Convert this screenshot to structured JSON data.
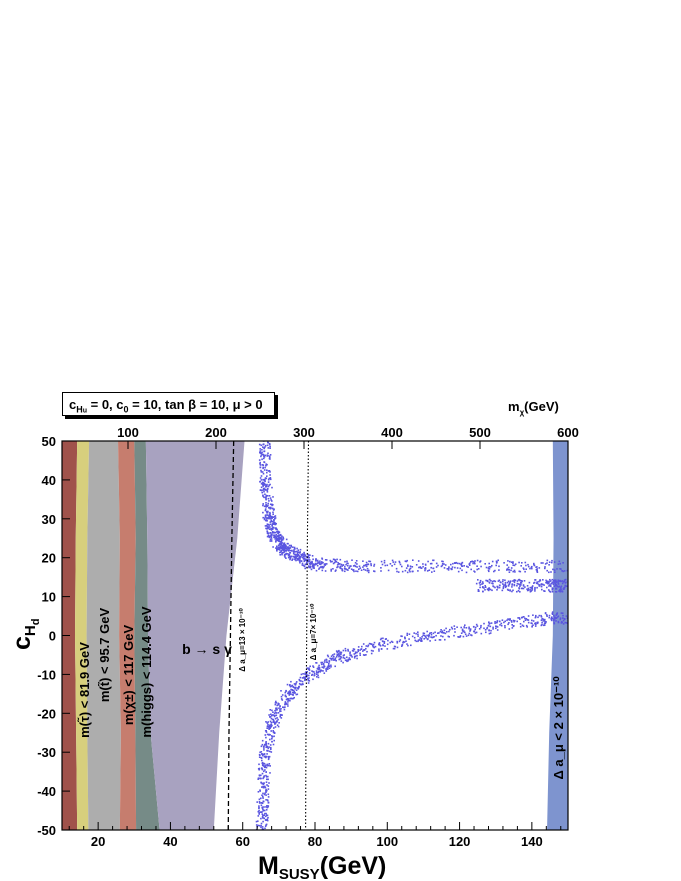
{
  "chart_data": {
    "type": "scatter",
    "title": "",
    "legend_text": {
      "prefix": "c",
      "sub": "H",
      "subsub": "u",
      "rest": " = 0, c",
      "sub2": "0",
      "rest2": " = 10, tan β = 10, μ > 0"
    },
    "xlabel": "M",
    "xlabel_sub": "SUSY",
    "xlabel_unit": "(GeV)",
    "ylabel": "c",
    "ylabel_sub": "H",
    "ylabel_subsub": "d",
    "top_axis_label": "m",
    "top_axis_label_sub": "χ",
    "top_axis_label_unit": "(GeV)",
    "xlim": [
      10,
      150
    ],
    "ylim": [
      -50,
      50
    ],
    "x_ticks": [
      "20",
      "40",
      "60",
      "80",
      "100",
      "120",
      "140"
    ],
    "y_ticks": [
      "-50",
      "-40",
      "-30",
      "-20",
      "-10",
      "0",
      "10",
      "20",
      "30",
      "40",
      "50"
    ],
    "top_ticks": [
      "100",
      "200",
      "300",
      "400",
      "500",
      "600"
    ],
    "regions": [
      {
        "name": "m(τ̃) < 81.9 GeV",
        "color": "#a0524b",
        "x_right": [
          12,
          12
        ]
      },
      {
        "name": "m(τ̃) < 81.9 GeV",
        "color": "#d7cf7d"
      },
      {
        "name": "m(t̃) < 95.7 GeV",
        "color": "#adadad"
      },
      {
        "name": "m(χ±) < 117 GeV",
        "color": "#c67d6e"
      },
      {
        "name": "m(higgs) < 114.4 GeV",
        "color": "#768b87"
      },
      {
        "name": "b → s γ",
        "color": "#a8a2c0"
      },
      {
        "name": "Δ a_μ < 2 × 10⁻¹⁰",
        "color": "#7e94cf"
      }
    ],
    "region_labels": [
      "m(τ̃) < 81.9 GeV",
      "m(t̃) < 95.7 GeV",
      "m(χ±) < 117 GeV",
      "m(higgs) < 114.4 GeV",
      "b → s γ",
      "Δ a_μ < 2 × 10⁻¹⁰"
    ],
    "contour_labels": [
      "Δ a_μ=13 × 10⁻¹⁰",
      "Δ a_μ=7× 10⁻¹⁰"
    ],
    "contours": [
      {
        "style": "dashed",
        "x": [
          57.5,
          57.0,
          56.6,
          56.2,
          56.0
        ],
        "y": [
          50,
          25,
          0,
          -25,
          -50
        ]
      },
      {
        "style": "dotted",
        "x": [
          78.2,
          77.9,
          77.7,
          77.5,
          77.4
        ],
        "y": [
          50,
          25,
          0,
          -25,
          -50
        ]
      }
    ],
    "series": [
      {
        "color": "#5a55e0",
        "bands": [
          {
            "x": [
              66,
              66,
              67,
              68,
              70,
              72,
              76,
              80,
              90,
              110,
              130,
              150
            ],
            "y": [
              50,
              40,
              32,
              27,
              24,
              22,
              20,
              18.5,
              18,
              18,
              18,
              18
            ]
          },
          {
            "x": [
              125,
              135,
              145,
              150
            ],
            "y": [
              13,
              13,
              13,
              13
            ]
          },
          {
            "x": [
              65,
              65.5,
              66,
              68,
              72,
              78,
              85,
              95,
              110,
              125,
              140,
              150
            ],
            "y": [
              -50,
              -40,
              -30,
              -22,
              -15,
              -10,
              -6,
              -3,
              0,
              2,
              4,
              5
            ]
          }
        ]
      }
    ]
  }
}
